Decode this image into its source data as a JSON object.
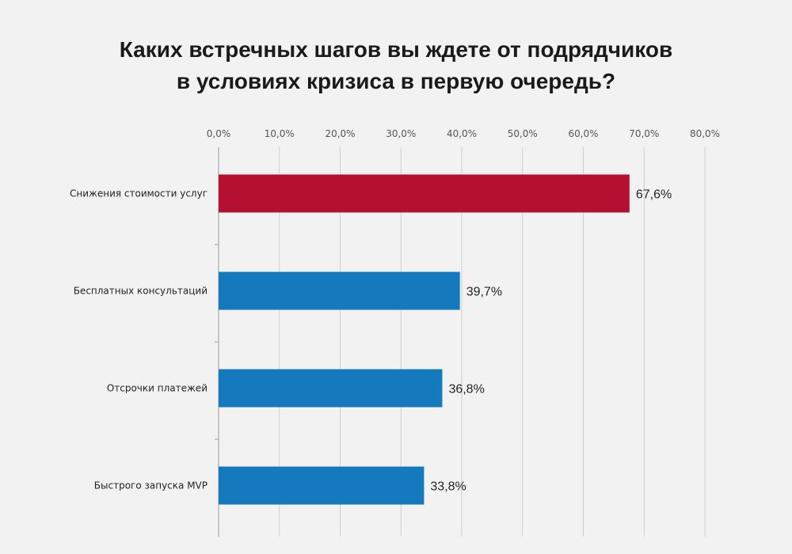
{
  "chart_data": {
    "type": "bar",
    "orientation": "horizontal",
    "title": "Каких встречных шагов вы ждете от подрядчиков в условиях кризиса в первую очередь?",
    "title_lines": [
      "Каких встречных шагов вы ждете от подрядчиков",
      "в условиях кризиса в первую очередь?"
    ],
    "categories": [
      "Снижения стоимости услуг",
      "Бесплатных консультаций",
      "Отсрочки платежей",
      "Быстрого запуска MVP"
    ],
    "values": [
      67.6,
      39.7,
      36.8,
      33.8
    ],
    "value_labels": [
      "67,6%",
      "39,7%",
      "36,8%",
      "33,8%"
    ],
    "bar_colors": [
      "#b5102f",
      "#1579bd",
      "#1579bd",
      "#1579bd"
    ],
    "xlim": [
      0,
      80
    ],
    "xticks": [
      0,
      10,
      20,
      30,
      40,
      50,
      60,
      70,
      80
    ],
    "xtick_labels": [
      "0,0%",
      "10,0%",
      "20,0%",
      "30,0%",
      "40,0%",
      "50,0%",
      "60,0%",
      "70,0%",
      "80,0%"
    ],
    "x_axis_position": "top",
    "grid": true,
    "xlabel": "",
    "ylabel": ""
  }
}
